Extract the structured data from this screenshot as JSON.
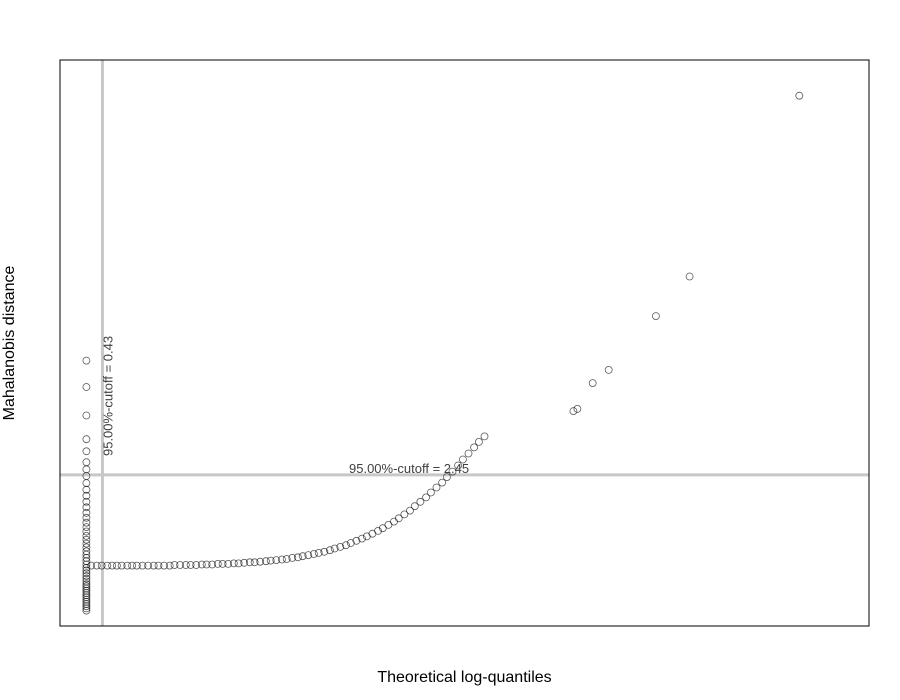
{
  "chart_data": {
    "type": "scatter",
    "title": "",
    "xlabel": "Theoretical log-quantiles",
    "ylabel": "Mahalanobis distance",
    "xlim": [
      -0.1,
      10.0
    ],
    "ylim": [
      -0.3,
      10.0
    ],
    "grid": false,
    "legend": "none",
    "colors": {
      "points": "#000000",
      "cutoff_lines": "#c8c8c8",
      "frame": "#000000",
      "label_text": "#404040"
    },
    "vertical_cutoff": {
      "value": 0.43,
      "label": "95.00%-cutoff =    0.43"
    },
    "horizontal_cutoff": {
      "value": 2.45,
      "label": "95.00%-cutoff =    2.45"
    },
    "points": [
      {
        "x": 0.23,
        "y": 4.53
      },
      {
        "x": 0.23,
        "y": 4.05
      },
      {
        "x": 0.23,
        "y": 3.53
      },
      {
        "x": 0.23,
        "y": 3.1
      },
      {
        "x": 0.23,
        "y": 2.88
      },
      {
        "x": 0.23,
        "y": 2.68
      },
      {
        "x": 0.23,
        "y": 2.55
      },
      {
        "x": 0.23,
        "y": 2.43
      },
      {
        "x": 0.23,
        "y": 2.3
      },
      {
        "x": 0.23,
        "y": 2.18
      },
      {
        "x": 0.23,
        "y": 2.07
      },
      {
        "x": 0.23,
        "y": 1.96
      },
      {
        "x": 0.23,
        "y": 1.86
      },
      {
        "x": 0.23,
        "y": 1.76
      },
      {
        "x": 0.23,
        "y": 1.67
      },
      {
        "x": 0.23,
        "y": 1.58
      },
      {
        "x": 0.23,
        "y": 1.5
      },
      {
        "x": 0.23,
        "y": 1.42
      },
      {
        "x": 0.23,
        "y": 1.34
      },
      {
        "x": 0.23,
        "y": 1.27
      },
      {
        "x": 0.23,
        "y": 1.2
      },
      {
        "x": 0.23,
        "y": 1.13
      },
      {
        "x": 0.23,
        "y": 1.06
      },
      {
        "x": 0.23,
        "y": 1.0
      },
      {
        "x": 0.23,
        "y": 0.94
      },
      {
        "x": 0.23,
        "y": 0.88
      },
      {
        "x": 0.23,
        "y": 0.82
      },
      {
        "x": 0.23,
        "y": 0.76
      },
      {
        "x": 0.23,
        "y": 0.71
      },
      {
        "x": 0.23,
        "y": 0.66
      },
      {
        "x": 0.23,
        "y": 0.61
      },
      {
        "x": 0.23,
        "y": 0.56
      },
      {
        "x": 0.23,
        "y": 0.51
      },
      {
        "x": 0.23,
        "y": 0.46
      },
      {
        "x": 0.23,
        "y": 0.42
      },
      {
        "x": 0.23,
        "y": 0.38
      },
      {
        "x": 0.23,
        "y": 0.34
      },
      {
        "x": 0.23,
        "y": 0.3
      },
      {
        "x": 0.23,
        "y": 0.26
      },
      {
        "x": 0.23,
        "y": 0.22
      },
      {
        "x": 0.23,
        "y": 0.18
      },
      {
        "x": 0.23,
        "y": 0.14
      },
      {
        "x": 0.23,
        "y": 0.1
      },
      {
        "x": 0.23,
        "y": 0.06
      },
      {
        "x": 0.23,
        "y": 0.02
      },
      {
        "x": 0.23,
        "y": -0.02
      },
      {
        "x": 0.29,
        "y": 0.8
      },
      {
        "x": 0.36,
        "y": 0.8
      },
      {
        "x": 0.42,
        "y": 0.8
      },
      {
        "x": 0.49,
        "y": 0.8
      },
      {
        "x": 0.55,
        "y": 0.8
      },
      {
        "x": 0.61,
        "y": 0.8
      },
      {
        "x": 0.67,
        "y": 0.8
      },
      {
        "x": 0.74,
        "y": 0.8
      },
      {
        "x": 0.8,
        "y": 0.8
      },
      {
        "x": 0.86,
        "y": 0.8
      },
      {
        "x": 0.93,
        "y": 0.8
      },
      {
        "x": 1.0,
        "y": 0.8
      },
      {
        "x": 1.07,
        "y": 0.8
      },
      {
        "x": 1.13,
        "y": 0.8
      },
      {
        "x": 1.2,
        "y": 0.8
      },
      {
        "x": 1.27,
        "y": 0.8
      },
      {
        "x": 1.33,
        "y": 0.81
      },
      {
        "x": 1.4,
        "y": 0.81
      },
      {
        "x": 1.47,
        "y": 0.81
      },
      {
        "x": 1.53,
        "y": 0.81
      },
      {
        "x": 1.6,
        "y": 0.81
      },
      {
        "x": 1.67,
        "y": 0.82
      },
      {
        "x": 1.73,
        "y": 0.82
      },
      {
        "x": 1.8,
        "y": 0.82
      },
      {
        "x": 1.87,
        "y": 0.83
      },
      {
        "x": 1.93,
        "y": 0.83
      },
      {
        "x": 2.0,
        "y": 0.83
      },
      {
        "x": 2.07,
        "y": 0.84
      },
      {
        "x": 2.13,
        "y": 0.84
      },
      {
        "x": 2.2,
        "y": 0.85
      },
      {
        "x": 2.27,
        "y": 0.86
      },
      {
        "x": 2.33,
        "y": 0.86
      },
      {
        "x": 2.4,
        "y": 0.87
      },
      {
        "x": 2.47,
        "y": 0.88
      },
      {
        "x": 2.53,
        "y": 0.89
      },
      {
        "x": 2.6,
        "y": 0.9
      },
      {
        "x": 2.67,
        "y": 0.91
      },
      {
        "x": 2.73,
        "y": 0.92
      },
      {
        "x": 2.8,
        "y": 0.94
      },
      {
        "x": 2.87,
        "y": 0.95
      },
      {
        "x": 2.93,
        "y": 0.97
      },
      {
        "x": 3.0,
        "y": 0.99
      },
      {
        "x": 3.07,
        "y": 1.01
      },
      {
        "x": 3.13,
        "y": 1.03
      },
      {
        "x": 3.2,
        "y": 1.05
      },
      {
        "x": 3.27,
        "y": 1.08
      },
      {
        "x": 3.33,
        "y": 1.11
      },
      {
        "x": 3.4,
        "y": 1.14
      },
      {
        "x": 3.47,
        "y": 1.17
      },
      {
        "x": 3.53,
        "y": 1.21
      },
      {
        "x": 3.6,
        "y": 1.25
      },
      {
        "x": 3.67,
        "y": 1.29
      },
      {
        "x": 3.73,
        "y": 1.33
      },
      {
        "x": 3.8,
        "y": 1.38
      },
      {
        "x": 3.87,
        "y": 1.43
      },
      {
        "x": 3.93,
        "y": 1.48
      },
      {
        "x": 4.0,
        "y": 1.54
      },
      {
        "x": 4.07,
        "y": 1.6
      },
      {
        "x": 4.13,
        "y": 1.66
      },
      {
        "x": 4.2,
        "y": 1.73
      },
      {
        "x": 4.27,
        "y": 1.8
      },
      {
        "x": 4.33,
        "y": 1.88
      },
      {
        "x": 4.4,
        "y": 1.96
      },
      {
        "x": 4.47,
        "y": 2.04
      },
      {
        "x": 4.53,
        "y": 2.13
      },
      {
        "x": 4.6,
        "y": 2.22
      },
      {
        "x": 4.67,
        "y": 2.31
      },
      {
        "x": 4.73,
        "y": 2.41
      },
      {
        "x": 4.8,
        "y": 2.51
      },
      {
        "x": 4.87,
        "y": 2.62
      },
      {
        "x": 4.93,
        "y": 2.73
      },
      {
        "x": 5.0,
        "y": 2.84
      },
      {
        "x": 5.07,
        "y": 2.95
      },
      {
        "x": 5.13,
        "y": 3.05
      },
      {
        "x": 5.2,
        "y": 3.15
      },
      {
        "x": 6.31,
        "y": 3.61
      },
      {
        "x": 6.36,
        "y": 3.65
      },
      {
        "x": 6.55,
        "y": 4.12
      },
      {
        "x": 6.75,
        "y": 4.36
      },
      {
        "x": 7.34,
        "y": 5.34
      },
      {
        "x": 7.76,
        "y": 6.06
      },
      {
        "x": 9.13,
        "y": 9.35
      }
    ]
  }
}
